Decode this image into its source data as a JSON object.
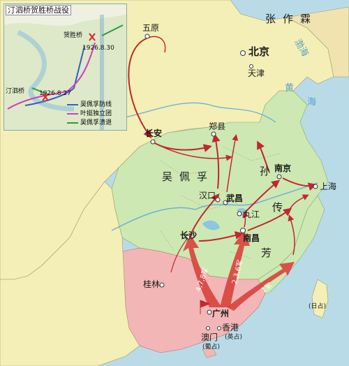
{
  "regions": {
    "zhang_zuolin": "张作霖",
    "wu_peifu": "吴佩孚",
    "sun": "孙",
    "chuan": "传",
    "fang": "芳"
  },
  "sea": {
    "bohai": "渤海",
    "huang": "黄",
    "hai": "海"
  },
  "cities": {
    "wuyuan": "五原",
    "beijing": "北京",
    "tianjin": "天津",
    "xian": "长安",
    "zhengzhou": "郑县",
    "nanjing": "南京",
    "shanghai": "上海",
    "hankou": "汉口",
    "wuchang": "武昌",
    "jiujiang": "九江",
    "changsha": "长沙",
    "nanchang": "南昌",
    "guilin": "桂林",
    "guangzhou": "广州",
    "macau": "澳门",
    "macau_occ": "(葡占)",
    "hongkong": "香港",
    "hongkong_occ": "(英占)",
    "taiwan_occ": "(日占)"
  },
  "armies": {
    "a478": "4,7,8军",
    "a236": "2,3,6军",
    "a1": "1军"
  },
  "inset": {
    "title": "汀泗桥贺胜桥战役",
    "heshengqiao": "贺胜桥",
    "date1": "1926.8.30",
    "tingsiqiao": "汀泗桥",
    "date2": "1926.8.27",
    "legend": {
      "wu_defense": "吴佩孚防线",
      "yeting": "叶挺独立团",
      "wu_retreat": "吴佩孚溃退"
    }
  },
  "colors": {
    "sea": "#b9dbe8",
    "north_land": "#f4efb6",
    "wu_region": "#cde8b2",
    "revolutionary_base": "#f3b6b6",
    "route_arrow": "#c2262e",
    "legend_blue": "#3560c0",
    "legend_magenta": "#d03ec0",
    "legend_green": "#2e9a3a"
  }
}
